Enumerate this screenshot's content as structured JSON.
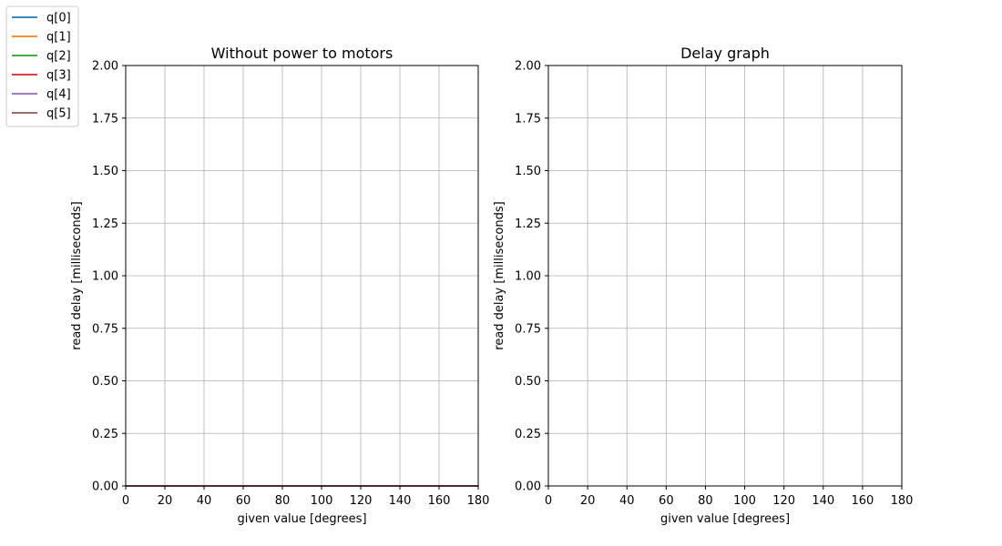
{
  "chart_data": [
    {
      "type": "line",
      "title": "Without power to motors",
      "xlabel": "given value [degrees]",
      "ylabel": "read delay [milliseconds]",
      "xlim": [
        0,
        180
      ],
      "ylim": [
        0,
        2.0
      ],
      "xticks": [
        0,
        20,
        40,
        60,
        80,
        100,
        120,
        140,
        160,
        180
      ],
      "yticks": [
        "0.00",
        "0.25",
        "0.50",
        "0.75",
        "1.00",
        "1.25",
        "1.50",
        "1.75",
        "2.00"
      ],
      "grid": true,
      "series": [
        {
          "name": "q[0]",
          "color": "#1f77b4",
          "x": [
            0,
            180
          ],
          "y": [
            0,
            0
          ]
        },
        {
          "name": "q[1]",
          "color": "#ff7f0e",
          "x": [
            0,
            180
          ],
          "y": [
            0,
            0
          ]
        },
        {
          "name": "q[2]",
          "color": "#2ca02c",
          "x": [
            0,
            180
          ],
          "y": [
            0,
            0
          ]
        },
        {
          "name": "q[3]",
          "color": "#d62728",
          "x": [
            0,
            180
          ],
          "y": [
            0,
            0
          ]
        },
        {
          "name": "q[4]",
          "color": "#9467bd",
          "x": [
            0,
            180
          ],
          "y": [
            0,
            0
          ]
        },
        {
          "name": "q[5]",
          "color": "#8c564b",
          "x": [
            0,
            180
          ],
          "y": [
            0,
            0
          ]
        }
      ]
    },
    {
      "type": "line",
      "title": "Delay graph",
      "xlabel": "given value [degrees]",
      "ylabel": "read delay [milliseconds]",
      "xlim": [
        0,
        180
      ],
      "ylim": [
        0,
        2.0
      ],
      "xticks": [
        0,
        20,
        40,
        60,
        80,
        100,
        120,
        140,
        160,
        180
      ],
      "yticks": [
        "0.00",
        "0.25",
        "0.50",
        "0.75",
        "1.00",
        "1.25",
        "1.50",
        "1.75",
        "2.00"
      ],
      "grid": true,
      "series": []
    }
  ],
  "legend": {
    "placement": "top-left",
    "entries": [
      {
        "label": "q[0]",
        "color": "#1f77b4"
      },
      {
        "label": "q[1]",
        "color": "#ff7f0e"
      },
      {
        "label": "q[2]",
        "color": "#2ca02c"
      },
      {
        "label": "q[3]",
        "color": "#d62728"
      },
      {
        "label": "q[4]",
        "color": "#9467bd"
      },
      {
        "label": "q[5]",
        "color": "#8c564b"
      }
    ]
  }
}
